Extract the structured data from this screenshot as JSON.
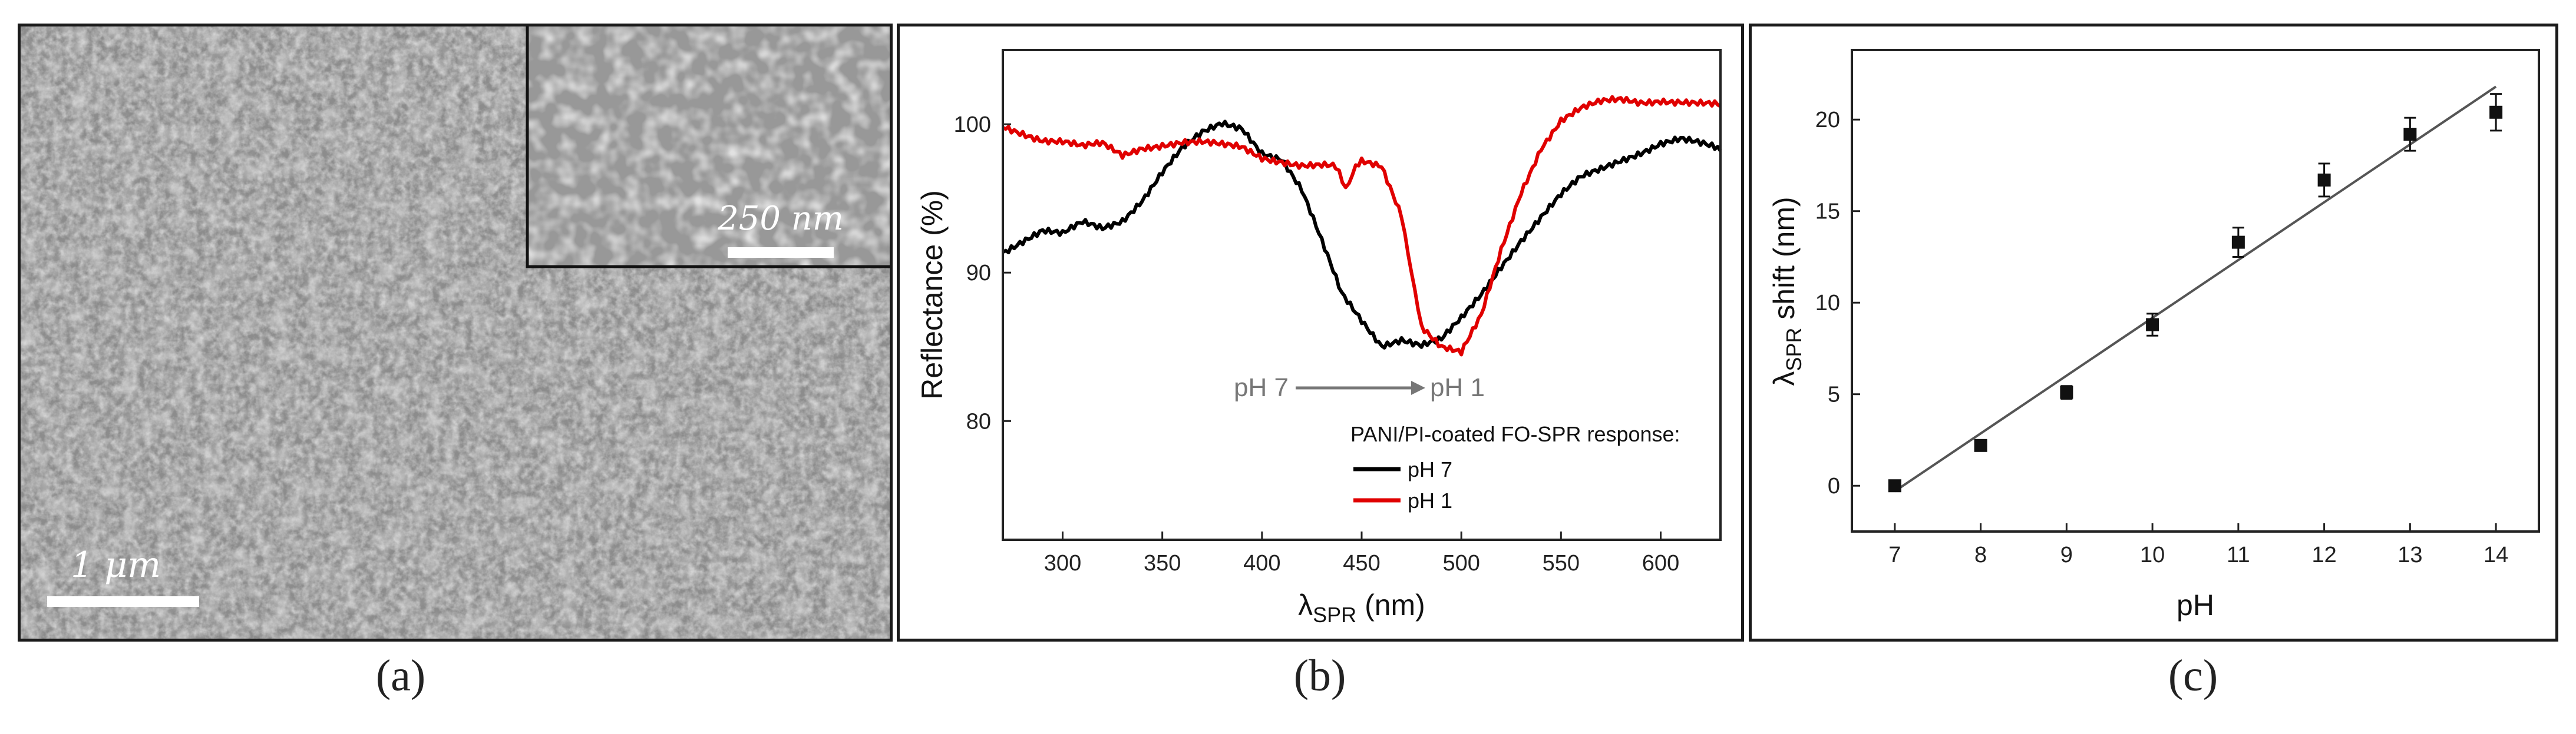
{
  "captions": {
    "a": "(a)",
    "b": "(b)",
    "c": "(c)"
  },
  "sem_panel": {
    "scale_bar_main": "1 μm",
    "scale_bar_inset": "250 nm"
  },
  "chart_data": [
    {
      "type": "line",
      "xlabel_main": "λ",
      "xlabel_sub": "SPR",
      "xlabel_unit": "(nm)",
      "ylabel": "Reflectance (%)",
      "xlim": [
        270,
        630
      ],
      "ylim": [
        72,
        105
      ],
      "xticks": [
        300,
        350,
        400,
        450,
        500,
        550,
        600
      ],
      "yticks": [
        80,
        90,
        100
      ],
      "annotation": {
        "left": "pH 7",
        "right": "pH 1"
      },
      "legend": {
        "title": "PANI/PI-coated FO-SPR response:",
        "placement": "lower-right",
        "entries": [
          "pH 7",
          "pH 1"
        ]
      },
      "series": [
        {
          "name": "pH 7",
          "color": "#000000",
          "x": [
            270,
            280,
            290,
            300,
            310,
            320,
            330,
            340,
            350,
            360,
            370,
            380,
            390,
            400,
            410,
            420,
            430,
            440,
            450,
            460,
            470,
            480,
            490,
            500,
            510,
            520,
            530,
            540,
            550,
            560,
            570,
            580,
            590,
            600,
            610,
            620,
            630
          ],
          "values": [
            91.5,
            92.2,
            92.8,
            92.5,
            93.3,
            93.0,
            93.6,
            95.0,
            96.8,
            98.3,
            99.3,
            100.0,
            99.8,
            98.2,
            97.7,
            95.5,
            92.0,
            88.5,
            86.8,
            85.2,
            85.6,
            85.1,
            85.4,
            86.8,
            88.5,
            90.5,
            92.3,
            93.8,
            95.2,
            96.3,
            96.9,
            97.6,
            98.2,
            98.8,
            99.0,
            98.6,
            98.2
          ]
        },
        {
          "name": "pH 1",
          "color": "#e00000",
          "x": [
            270,
            280,
            290,
            300,
            310,
            320,
            330,
            340,
            350,
            360,
            370,
            380,
            390,
            400,
            410,
            420,
            430,
            437,
            442,
            447,
            450,
            460,
            470,
            475,
            480,
            490,
            500,
            510,
            520,
            530,
            540,
            550,
            560,
            570,
            580,
            590,
            600,
            610,
            620,
            630
          ],
          "values": [
            99.9,
            99.5,
            99.0,
            98.8,
            98.4,
            98.6,
            97.9,
            98.5,
            98.7,
            98.8,
            98.7,
            98.5,
            98.4,
            97.8,
            97.6,
            97.3,
            97.2,
            97.0,
            95.8,
            97.1,
            97.4,
            97.2,
            94.0,
            89.8,
            86.5,
            85.0,
            84.5,
            87.0,
            91.5,
            95.5,
            98.5,
            100.3,
            101.0,
            101.4,
            101.6,
            101.5,
            101.7,
            101.6,
            101.4,
            101.2
          ]
        }
      ]
    },
    {
      "type": "scatter",
      "xlabel": "pH",
      "ylabel_main": "λ",
      "ylabel_sub": "SPR",
      "ylabel_rest": " shift (nm)",
      "xlim": [
        6.5,
        14.5
      ],
      "ylim": [
        -2.5,
        23.8
      ],
      "xticks": [
        7,
        8,
        9,
        10,
        11,
        12,
        13,
        14
      ],
      "yticks": [
        0,
        5,
        10,
        15,
        20
      ],
      "points": {
        "x": [
          7,
          8,
          9,
          10,
          11,
          12,
          13,
          14
        ],
        "y": [
          0.0,
          2.2,
          5.1,
          8.8,
          13.3,
          16.7,
          19.2,
          20.4
        ],
        "error": [
          0.1,
          0.2,
          0.35,
          0.6,
          0.8,
          0.9,
          0.9,
          1.0
        ]
      },
      "fit_line": {
        "x": [
          7,
          14
        ],
        "y": [
          -0.3,
          21.8
        ],
        "color": "#555555"
      }
    }
  ]
}
